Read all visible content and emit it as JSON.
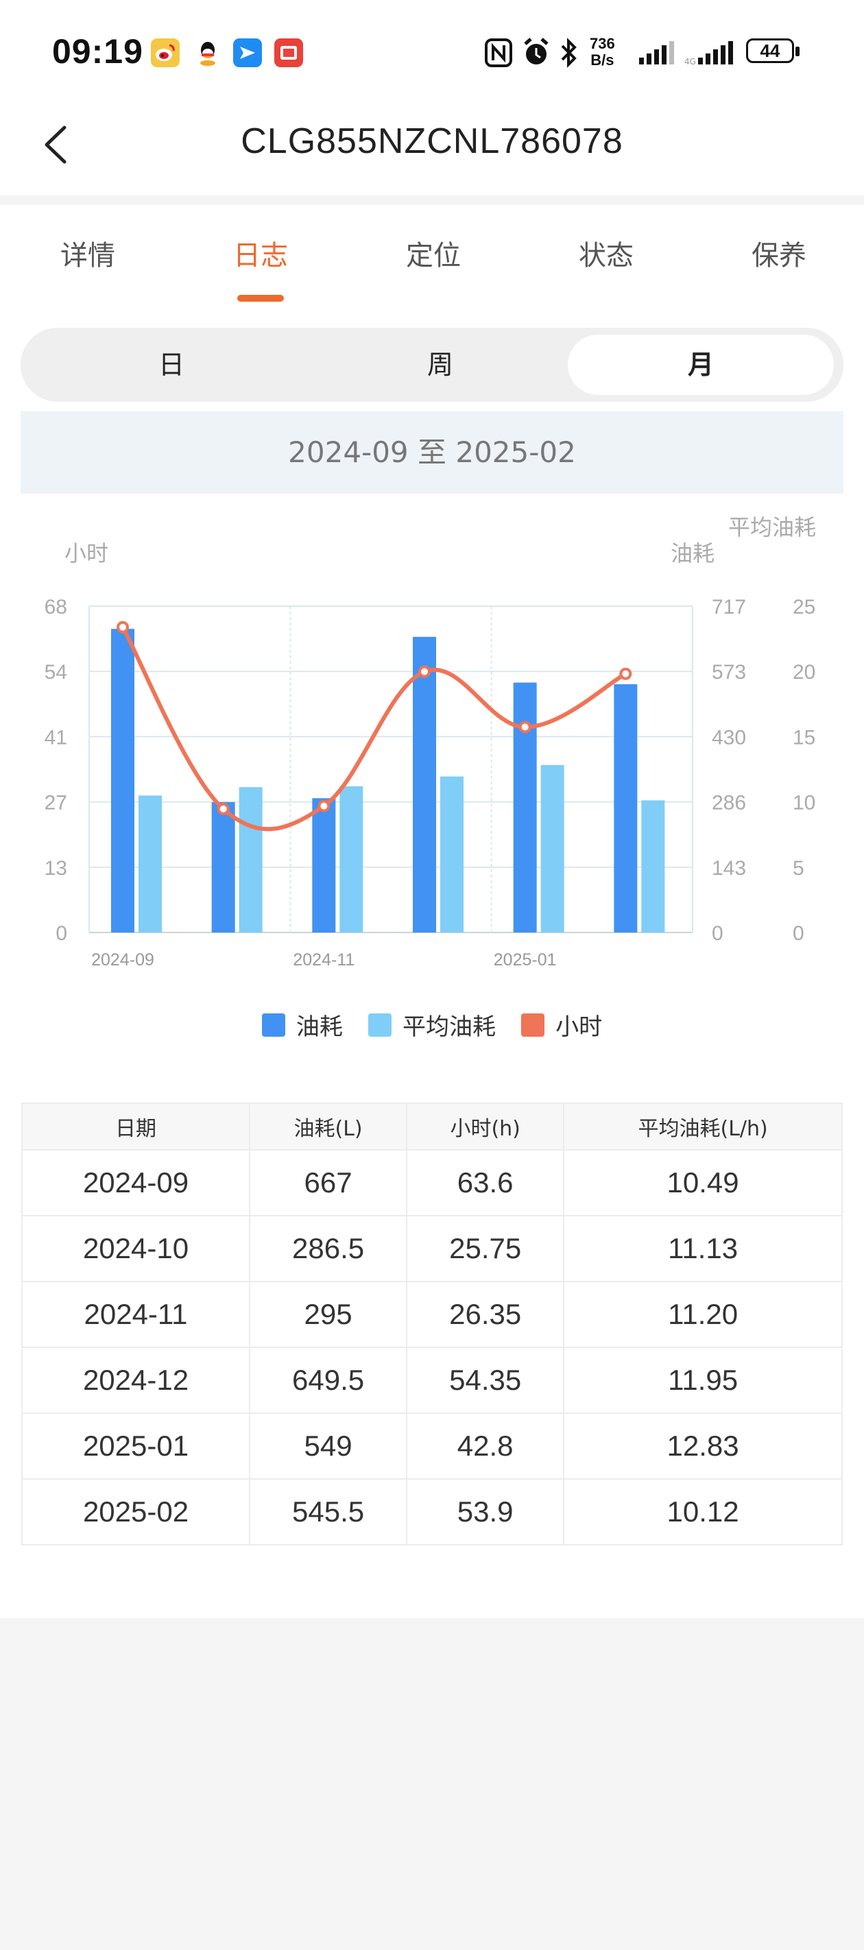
{
  "status_bar": {
    "time": "09:19",
    "net_speed_value": "736",
    "net_speed_unit": "B/s",
    "battery": "44",
    "icons": [
      "weibo-icon",
      "qq-icon",
      "feishu-icon",
      "red-app-icon",
      "nfc-icon",
      "alarm-icon",
      "bluetooth-icon",
      "signal-icon",
      "signal-icon",
      "battery-icon"
    ]
  },
  "header": {
    "title": "CLG855NZCNL786078"
  },
  "tabs": [
    {
      "label": "详情",
      "active": false
    },
    {
      "label": "日志",
      "active": true
    },
    {
      "label": "定位",
      "active": false
    },
    {
      "label": "状态",
      "active": false
    },
    {
      "label": "保养",
      "active": false
    }
  ],
  "period_toggle": [
    {
      "label": "日",
      "active": false
    },
    {
      "label": "周",
      "active": false
    },
    {
      "label": "月",
      "active": true
    }
  ],
  "date_range": "2024-09 至 2025-02",
  "chart_data": {
    "type": "bar",
    "categories": [
      "2024-09",
      "2024-10",
      "2024-11",
      "2024-12",
      "2025-01",
      "2025-02"
    ],
    "x_tick_labels": [
      "2024-09",
      "",
      "2024-11",
      "",
      "2025-01",
      ""
    ],
    "axes": {
      "left": {
        "label": "小时",
        "ticks": [
          "0",
          "13",
          "27",
          "41",
          "54",
          "68"
        ],
        "range": [
          0,
          68
        ]
      },
      "right1": {
        "label": "油耗",
        "ticks": [
          "0",
          "143",
          "286",
          "430",
          "573",
          "717"
        ],
        "range": [
          0,
          717
        ]
      },
      "right2": {
        "label": "平均油耗",
        "ticks": [
          "0",
          "5",
          "10",
          "15",
          "20",
          "25"
        ],
        "range": [
          0,
          25
        ]
      }
    },
    "series": [
      {
        "name": "油耗",
        "type": "bar",
        "axis": "right1",
        "color": "#4192f2",
        "values": [
          667,
          286.5,
          295,
          649.5,
          549,
          545.5
        ]
      },
      {
        "name": "平均油耗",
        "type": "bar",
        "axis": "right2",
        "color": "#80cdf8",
        "values": [
          10.49,
          11.13,
          11.2,
          11.95,
          12.83,
          10.12
        ]
      },
      {
        "name": "小时",
        "type": "line",
        "axis": "left",
        "color": "#f07457",
        "values": [
          63.6,
          25.75,
          26.35,
          54.35,
          42.8,
          53.9
        ]
      }
    ],
    "legend_position": "bottom-center",
    "grid": true
  },
  "table": {
    "headers": [
      "日期",
      "油耗(L)",
      "小时(h)",
      "平均油耗(L/h)"
    ],
    "rows": [
      [
        "2024-09",
        "667",
        "63.6",
        "10.49"
      ],
      [
        "2024-10",
        "286.5",
        "25.75",
        "11.13"
      ],
      [
        "2024-11",
        "295",
        "26.35",
        "11.20"
      ],
      [
        "2024-12",
        "649.5",
        "54.35",
        "11.95"
      ],
      [
        "2025-01",
        "549",
        "42.8",
        "12.83"
      ],
      [
        "2025-02",
        "545.5",
        "53.9",
        "10.12"
      ]
    ]
  }
}
